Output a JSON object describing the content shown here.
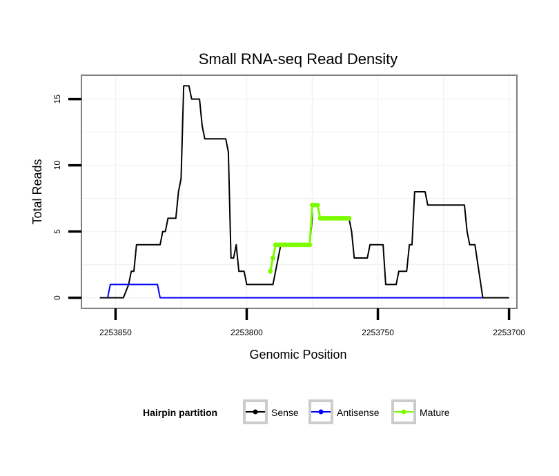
{
  "chart_data": {
    "type": "line",
    "title": "Small RNA-seq Read Density",
    "xlabel": "Genomic Position",
    "ylabel": "Total Reads",
    "x_reversed": true,
    "xlim": [
      2253863,
      2253697
    ],
    "ylim": [
      -0.8,
      16.8
    ],
    "x_ticks": [
      2253850,
      2253800,
      2253750,
      2253700
    ],
    "x_tick_labels": [
      "2253850",
      "2253800",
      "2253750",
      "2253700"
    ],
    "y_ticks": [
      0,
      5,
      10,
      15
    ],
    "y_tick_labels": [
      "0",
      "5",
      "10",
      "15"
    ],
    "grid": true,
    "legend": {
      "title": "Hairpin partition",
      "position": "bottom",
      "entries": [
        {
          "key": "sense",
          "label": "Sense"
        },
        {
          "key": "antisense",
          "label": "Antisense"
        },
        {
          "key": "mature",
          "label": "Mature"
        }
      ]
    },
    "colors": {
      "sense": "#000000",
      "antisense": "#0000ff",
      "mature": "#7cfc00",
      "panel_border": "#7f7f7f",
      "grid": "#f2f2f2"
    },
    "series": [
      {
        "name": "Sense",
        "key": "sense",
        "points": [
          [
            2253856,
            0
          ],
          [
            2253847,
            0
          ],
          [
            2253845,
            1
          ],
          [
            2253844,
            2
          ],
          [
            2253843,
            2
          ],
          [
            2253842,
            4
          ],
          [
            2253833,
            4
          ],
          [
            2253832,
            5
          ],
          [
            2253831,
            5
          ],
          [
            2253830,
            6
          ],
          [
            2253827,
            6
          ],
          [
            2253826,
            8
          ],
          [
            2253825,
            9
          ],
          [
            2253824,
            16
          ],
          [
            2253822,
            16
          ],
          [
            2253821,
            15
          ],
          [
            2253818,
            15
          ],
          [
            2253817,
            13
          ],
          [
            2253816,
            12
          ],
          [
            2253808,
            12
          ],
          [
            2253807,
            11
          ],
          [
            2253806,
            3
          ],
          [
            2253805,
            3
          ],
          [
            2253804,
            4
          ],
          [
            2253803,
            2
          ],
          [
            2253801,
            2
          ],
          [
            2253800,
            1
          ],
          [
            2253790,
            1
          ],
          [
            2253789,
            2
          ],
          [
            2253788,
            3
          ],
          [
            2253787,
            4
          ],
          [
            2253776,
            4
          ],
          [
            2253775,
            6
          ],
          [
            2253775,
            7
          ],
          [
            2253773,
            7
          ],
          [
            2253772,
            6
          ],
          [
            2253761,
            6
          ],
          [
            2253760,
            5
          ],
          [
            2253759,
            3
          ],
          [
            2253754,
            3
          ],
          [
            2253753,
            4
          ],
          [
            2253748,
            4
          ],
          [
            2253747,
            1
          ],
          [
            2253743,
            1
          ],
          [
            2253742,
            2
          ],
          [
            2253739,
            2
          ],
          [
            2253738,
            4
          ],
          [
            2253737,
            4
          ],
          [
            2253736,
            8
          ],
          [
            2253732,
            8
          ],
          [
            2253731,
            7
          ],
          [
            2253717,
            7
          ],
          [
            2253716,
            5
          ],
          [
            2253715,
            4
          ],
          [
            2253713,
            4
          ],
          [
            2253710,
            0
          ],
          [
            2253700,
            0
          ]
        ]
      },
      {
        "name": "Antisense",
        "key": "antisense",
        "points": [
          [
            2253853,
            0
          ],
          [
            2253852,
            1
          ],
          [
            2253834,
            1
          ],
          [
            2253833,
            0
          ],
          [
            2253710,
            0
          ]
        ]
      },
      {
        "name": "Mature",
        "key": "mature",
        "points": [
          [
            2253791,
            2
          ],
          [
            2253790,
            3
          ],
          [
            2253789,
            4
          ],
          [
            2253788,
            4
          ],
          [
            2253787,
            4
          ],
          [
            2253786,
            4
          ],
          [
            2253785,
            4
          ],
          [
            2253784,
            4
          ],
          [
            2253783,
            4
          ],
          [
            2253782,
            4
          ],
          [
            2253781,
            4
          ],
          [
            2253780,
            4
          ],
          [
            2253779,
            4
          ],
          [
            2253778,
            4
          ],
          [
            2253777,
            4
          ],
          [
            2253776,
            4
          ],
          [
            2253775,
            7
          ],
          [
            2253774,
            7
          ],
          [
            2253773,
            7
          ],
          [
            2253772,
            6
          ],
          [
            2253771,
            6
          ],
          [
            2253770,
            6
          ],
          [
            2253769,
            6
          ],
          [
            2253768,
            6
          ],
          [
            2253767,
            6
          ],
          [
            2253766,
            6
          ],
          [
            2253765,
            6
          ],
          [
            2253764,
            6
          ],
          [
            2253763,
            6
          ],
          [
            2253762,
            6
          ],
          [
            2253761,
            6
          ]
        ]
      }
    ]
  }
}
